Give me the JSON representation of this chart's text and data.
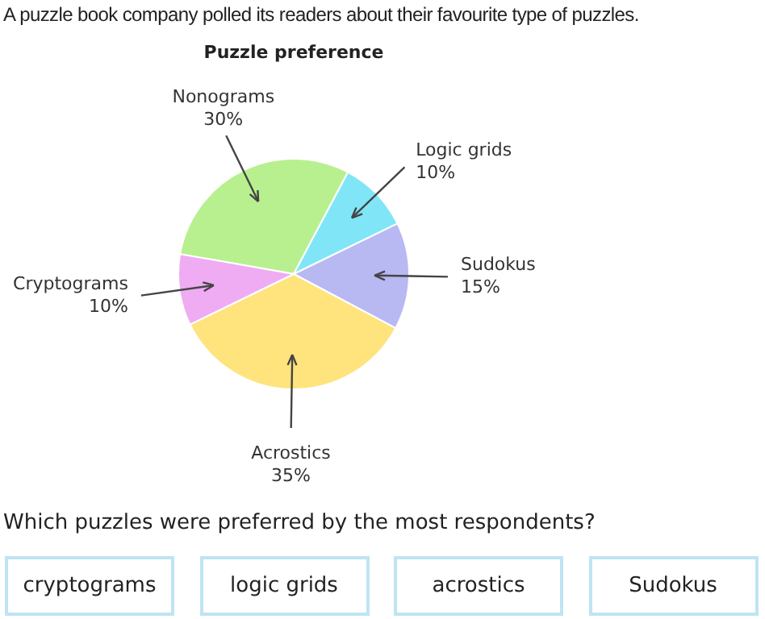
{
  "chart_data": {
    "type": "pie",
    "title": "Puzzle preference",
    "categories": [
      "Nonograms",
      "Logic grids",
      "Sudokus",
      "Acrostics",
      "Cryptograms"
    ],
    "values": [
      30,
      10,
      15,
      35,
      10
    ],
    "value_labels": [
      "30%",
      "10%",
      "15%",
      "35%",
      "10%"
    ],
    "colors": [
      "#b9f08f",
      "#80e6f7",
      "#b8b8f3",
      "#ffe37c",
      "#efacf2"
    ],
    "legend": false,
    "annotations": [
      "A puzzle book company polled its readers about their favourite type of puzzles.",
      "Which puzzles were preferred by the most respondents?",
      "cryptograms",
      "logic grids",
      "acrostics",
      "Sudokus"
    ]
  }
}
